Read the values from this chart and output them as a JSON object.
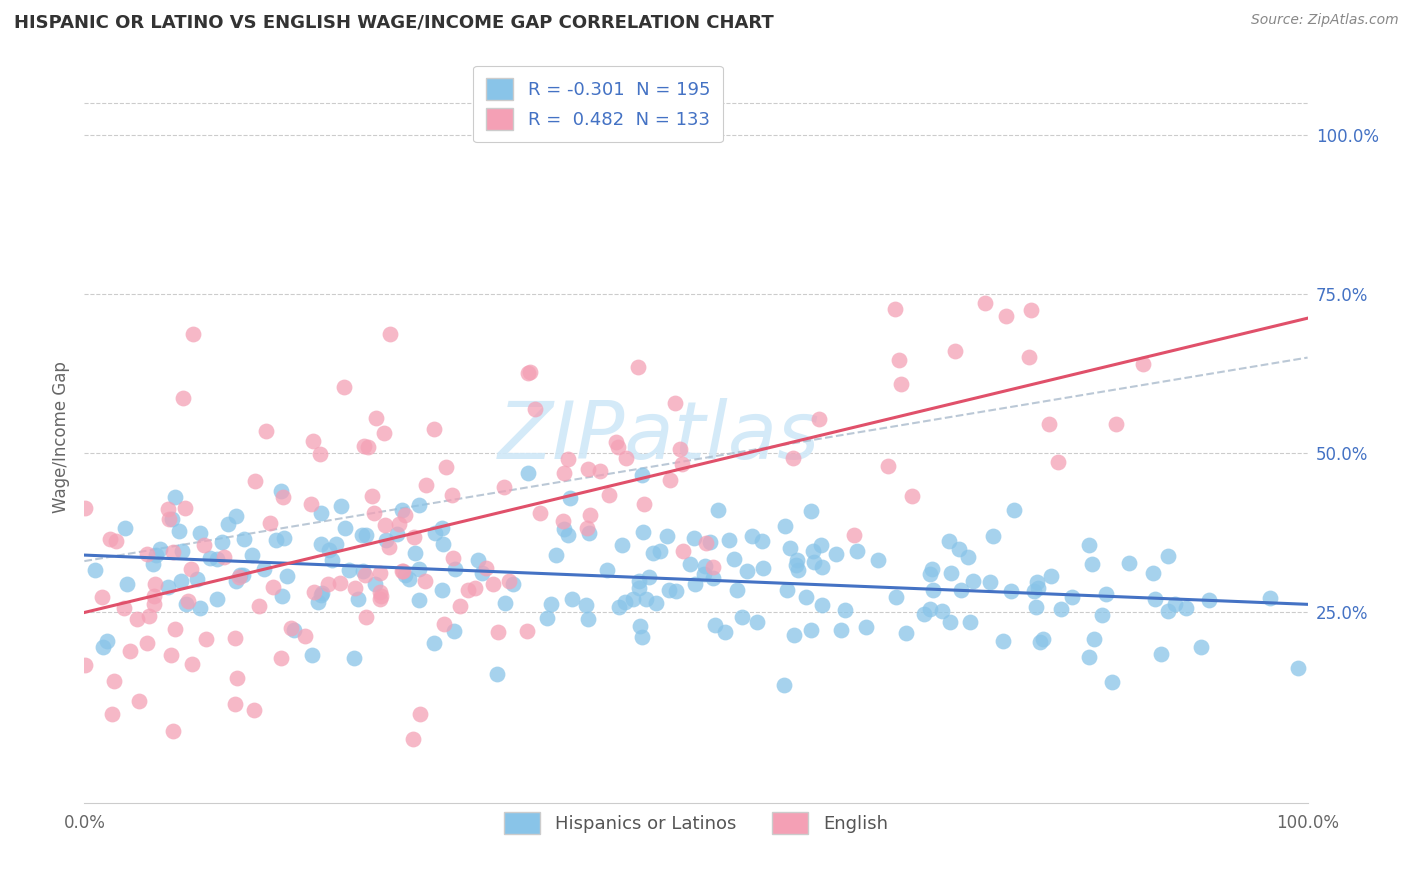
{
  "title": "HISPANIC OR LATINO VS ENGLISH WAGE/INCOME GAP CORRELATION CHART",
  "source": "Source: ZipAtlas.com",
  "ylabel": "Wage/Income Gap",
  "xmin": 0.0,
  "xmax": 1.0,
  "ymin": -0.05,
  "ymax": 1.1,
  "blue_R": -0.301,
  "blue_N": 195,
  "pink_R": 0.482,
  "pink_N": 133,
  "blue_color": "#89C4E8",
  "pink_color": "#F4A0B5",
  "blue_line_color": "#4472C4",
  "pink_line_color": "#E0506A",
  "background_color": "#FFFFFF",
  "grid_color": "#CCCCCC",
  "title_color": "#333333",
  "source_color": "#888888",
  "legend_label_blue": "Hispanics or Latinos",
  "legend_label_pink": "English",
  "y_tick_values": [
    0.25,
    0.5,
    0.75,
    1.0
  ],
  "y_tick_labels": [
    "25.0%",
    "50.0%",
    "75.0%",
    "100.0%"
  ],
  "x_tick_labels": [
    "0.0%",
    "100.0%"
  ],
  "watermark_color": "#D0E8F8",
  "blue_seed": 12,
  "pink_seed": 77
}
